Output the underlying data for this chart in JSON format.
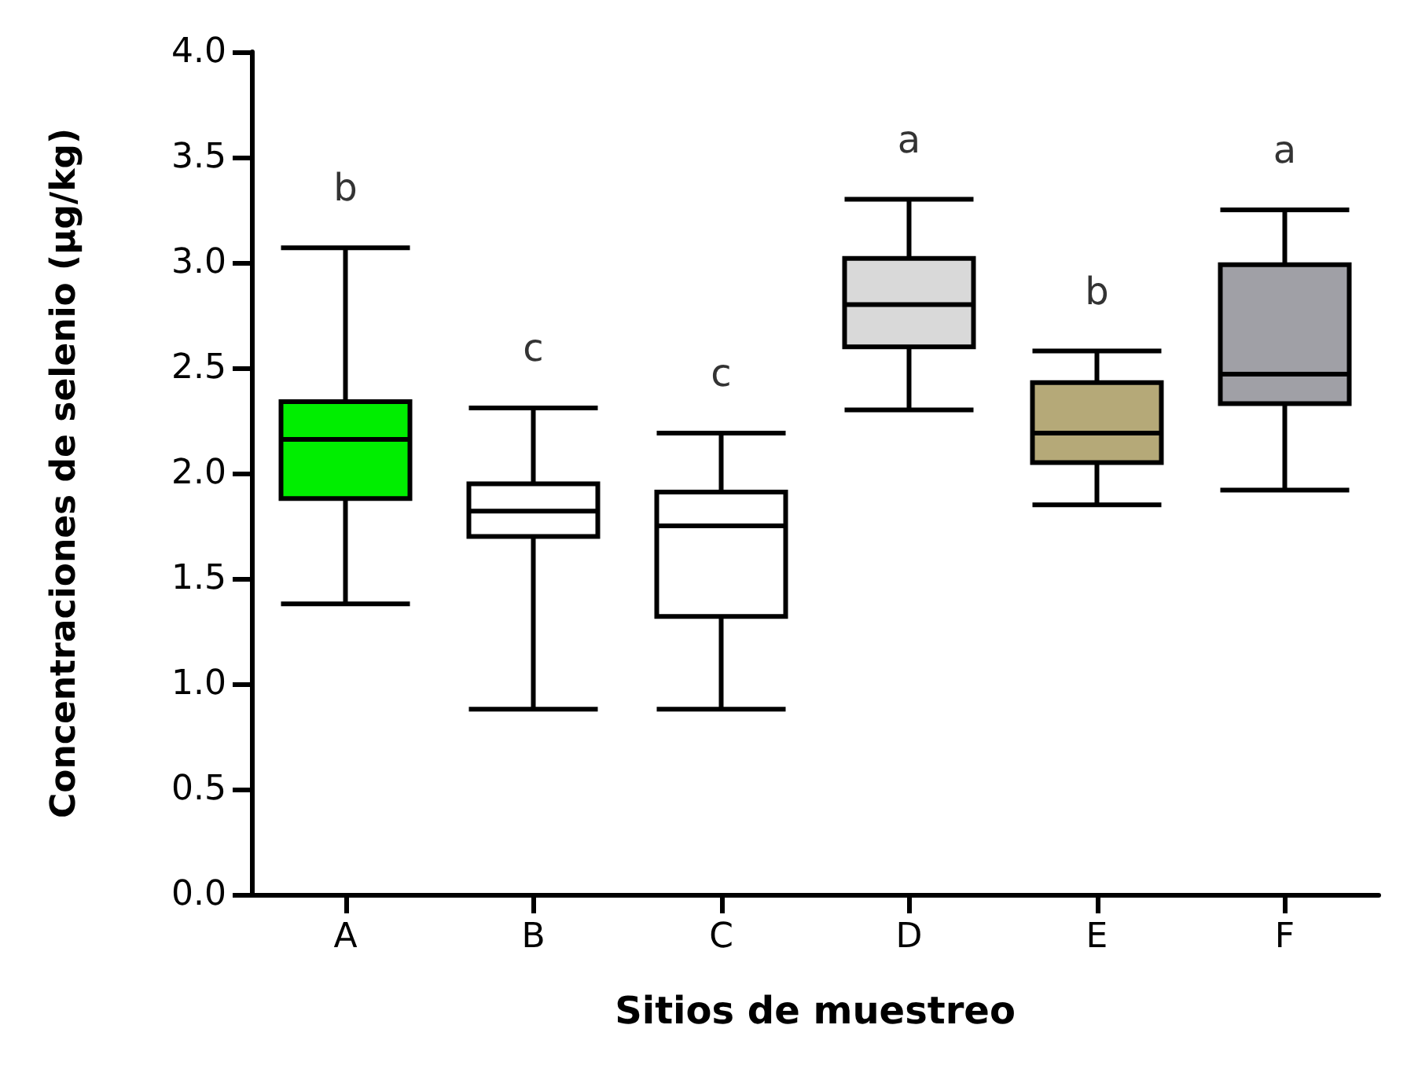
{
  "chart_data": {
    "type": "box",
    "xlabel": "Sitios de muestreo",
    "ylabel": "Concentraciones de selenio (µg/kg)",
    "categories": [
      "A",
      "B",
      "C",
      "D",
      "E",
      "F"
    ],
    "colors": [
      "#00ee00",
      "#ffffff",
      "#ffffff",
      "#d9d9d9",
      "#b5a978",
      "#a0a0a6"
    ],
    "boxes": [
      {
        "low": 1.38,
        "q1": 1.88,
        "median": 2.16,
        "q3": 2.34,
        "high": 3.07
      },
      {
        "low": 0.88,
        "q1": 1.7,
        "median": 1.82,
        "q3": 1.95,
        "high": 2.31
      },
      {
        "low": 0.88,
        "q1": 1.32,
        "median": 1.75,
        "q3": 1.91,
        "high": 2.19
      },
      {
        "low": 2.3,
        "q1": 2.6,
        "median": 2.8,
        "q3": 3.02,
        "high": 3.3
      },
      {
        "low": 1.85,
        "q1": 2.05,
        "median": 2.19,
        "q3": 2.43,
        "high": 2.58
      },
      {
        "low": 1.92,
        "q1": 2.33,
        "median": 2.47,
        "q3": 2.99,
        "high": 3.25
      }
    ],
    "ylim": [
      0,
      4
    ],
    "yticks": [
      {
        "value": 0,
        "label": "0.0"
      },
      0.5,
      {
        "value": 1,
        "label": "1.0"
      },
      1.5,
      {
        "value": 2,
        "label": "2.0"
      },
      2.5,
      {
        "value": 3,
        "label": "3.0"
      },
      3.5,
      {
        "value": 4,
        "label": "4.0"
      }
    ],
    "annotations": [
      "b",
      "c",
      "c",
      "a",
      "b",
      "a"
    ],
    "grid": false
  }
}
